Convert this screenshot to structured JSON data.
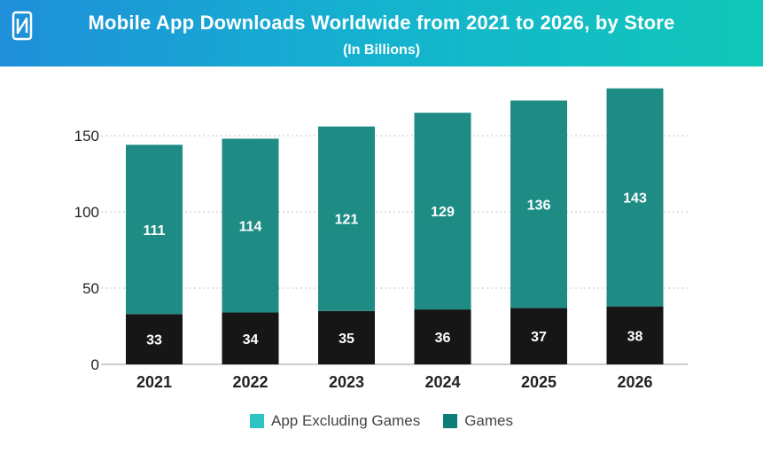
{
  "header": {
    "title": "Mobile App Downloads Worldwide from 2021 to 2026, by Store",
    "subtitle": "(In Billions)"
  },
  "colors": {
    "header_start": "#1f8fd9",
    "header_end": "#12c7b8",
    "apps_bar": "#1e8c84",
    "games_bar": "#161616",
    "legend_apps": "#2ec4c4",
    "legend_games": "#0e7c77"
  },
  "chart_data": {
    "type": "bar",
    "stacked": true,
    "title": "Mobile App Downloads Worldwide from 2021 to 2026, by Store",
    "subtitle": "(In Billions)",
    "categories": [
      "2021",
      "2022",
      "2023",
      "2024",
      "2025",
      "2026"
    ],
    "series": [
      {
        "name": "Games",
        "values": [
          33,
          34,
          35,
          36,
          37,
          38
        ]
      },
      {
        "name": "App Excluding Games",
        "values": [
          111,
          114,
          121,
          129,
          136,
          143
        ]
      }
    ],
    "y_ticks": [
      "0",
      "50",
      "100",
      "150"
    ],
    "ylim": [
      0,
      180
    ],
    "grid": true,
    "legend": "bottom",
    "xlabel": "",
    "ylabel": ""
  },
  "legend": {
    "items": [
      {
        "label": "App Excluding Games"
      },
      {
        "label": "Games"
      }
    ]
  }
}
